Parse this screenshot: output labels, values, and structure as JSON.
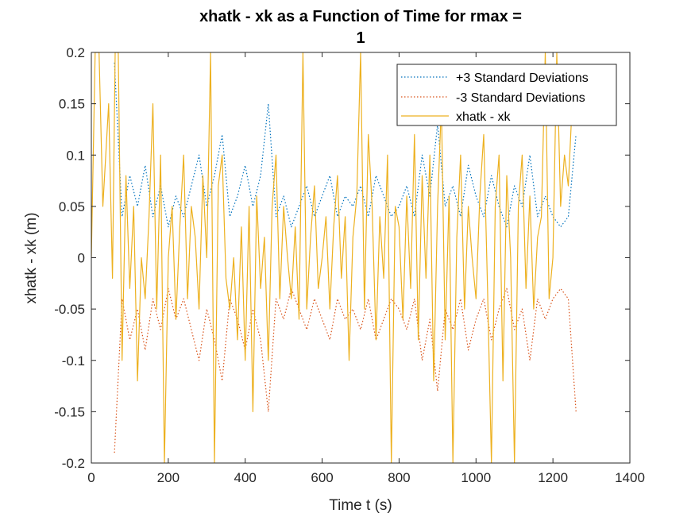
{
  "chart_data": {
    "type": "line",
    "title_line1": "xhatk - xk as a Function of Time for rmax =",
    "title_line2": "1",
    "xlabel": "Time t (s)",
    "ylabel": "xhatk - xk (m)",
    "xlim": [
      0,
      1400
    ],
    "ylim": [
      -0.2,
      0.2
    ],
    "x_ticks": [
      0,
      200,
      400,
      600,
      800,
      1000,
      1200,
      1400
    ],
    "x_tick_labels": [
      "0",
      "200",
      "400",
      "600",
      "800",
      "1000",
      "1200",
      "1400"
    ],
    "y_ticks": [
      -0.2,
      -0.15,
      -0.1,
      -0.05,
      0,
      0.05,
      0.1,
      0.15,
      0.2
    ],
    "y_tick_labels": [
      "-0.2",
      "-0.15",
      "-0.1",
      "-0.05",
      "0",
      "0.05",
      "0.1",
      "0.15",
      "0.2"
    ],
    "grid": false,
    "legend_position": "top-right",
    "colors": {
      "plus3": "#0072BD",
      "minus3": "#D95319",
      "error": "#EDB120"
    },
    "series": [
      {
        "name": "+3 Standard Deviations",
        "style": "dotted",
        "x": [
          60,
          80,
          100,
          120,
          140,
          160,
          180,
          200,
          220,
          240,
          260,
          280,
          300,
          320,
          340,
          360,
          380,
          400,
          420,
          440,
          460,
          480,
          500,
          520,
          540,
          560,
          580,
          600,
          620,
          640,
          660,
          680,
          700,
          720,
          740,
          760,
          780,
          800,
          820,
          840,
          860,
          880,
          900,
          920,
          940,
          960,
          980,
          1000,
          1020,
          1040,
          1060,
          1080,
          1100,
          1120,
          1140,
          1160,
          1180,
          1200,
          1220,
          1240,
          1260
        ],
        "values": [
          0.19,
          0.04,
          0.08,
          0.05,
          0.09,
          0.04,
          0.07,
          0.03,
          0.06,
          0.04,
          0.07,
          0.1,
          0.05,
          0.08,
          0.12,
          0.04,
          0.06,
          0.09,
          0.05,
          0.08,
          0.15,
          0.04,
          0.06,
          0.03,
          0.05,
          0.07,
          0.04,
          0.06,
          0.08,
          0.04,
          0.06,
          0.05,
          0.07,
          0.04,
          0.08,
          0.06,
          0.04,
          0.05,
          0.07,
          0.04,
          0.1,
          0.06,
          0.13,
          0.05,
          0.07,
          0.04,
          0.09,
          0.06,
          0.04,
          0.08,
          0.05,
          0.03,
          0.07,
          0.05,
          0.1,
          0.04,
          0.06,
          0.04,
          0.03,
          0.04,
          0.12
        ]
      },
      {
        "name": "-3 Standard Deviations",
        "style": "dotted",
        "x": [
          60,
          80,
          100,
          120,
          140,
          160,
          180,
          200,
          220,
          240,
          260,
          280,
          300,
          320,
          340,
          360,
          380,
          400,
          420,
          440,
          460,
          480,
          500,
          520,
          540,
          560,
          580,
          600,
          620,
          640,
          660,
          680,
          700,
          720,
          740,
          760,
          780,
          800,
          820,
          840,
          860,
          880,
          900,
          920,
          940,
          960,
          980,
          1000,
          1020,
          1040,
          1060,
          1080,
          1100,
          1120,
          1140,
          1160,
          1180,
          1200,
          1220,
          1240,
          1260
        ],
        "values": [
          -0.19,
          -0.04,
          -0.08,
          -0.05,
          -0.09,
          -0.04,
          -0.07,
          -0.03,
          -0.06,
          -0.04,
          -0.07,
          -0.1,
          -0.05,
          -0.08,
          -0.12,
          -0.04,
          -0.06,
          -0.09,
          -0.05,
          -0.08,
          -0.15,
          -0.04,
          -0.06,
          -0.03,
          -0.05,
          -0.07,
          -0.04,
          -0.06,
          -0.08,
          -0.04,
          -0.06,
          -0.05,
          -0.07,
          -0.04,
          -0.08,
          -0.06,
          -0.04,
          -0.05,
          -0.07,
          -0.04,
          -0.1,
          -0.06,
          -0.13,
          -0.05,
          -0.07,
          -0.04,
          -0.09,
          -0.06,
          -0.04,
          -0.08,
          -0.05,
          -0.03,
          -0.07,
          -0.05,
          -0.1,
          -0.04,
          -0.06,
          -0.04,
          -0.03,
          -0.04,
          -0.15
        ]
      },
      {
        "name": "xhatk - xk",
        "style": "solid",
        "x": [
          0,
          10,
          20,
          30,
          45,
          55,
          62,
          70,
          80,
          90,
          100,
          110,
          120,
          130,
          140,
          150,
          160,
          170,
          180,
          190,
          200,
          210,
          220,
          230,
          240,
          250,
          260,
          270,
          280,
          290,
          300,
          310,
          320,
          330,
          340,
          350,
          360,
          370,
          380,
          390,
          400,
          410,
          420,
          430,
          440,
          450,
          460,
          470,
          480,
          490,
          500,
          510,
          520,
          530,
          540,
          550,
          560,
          570,
          580,
          590,
          600,
          610,
          620,
          630,
          640,
          650,
          660,
          670,
          680,
          690,
          700,
          710,
          720,
          730,
          740,
          750,
          760,
          770,
          780,
          790,
          800,
          810,
          820,
          830,
          840,
          850,
          860,
          870,
          880,
          890,
          900,
          910,
          920,
          930,
          940,
          950,
          960,
          970,
          980,
          990,
          1000,
          1010,
          1020,
          1030,
          1040,
          1050,
          1060,
          1070,
          1080,
          1090,
          1100,
          1110,
          1120,
          1130,
          1140,
          1150,
          1160,
          1170,
          1180,
          1190,
          1200,
          1210,
          1220,
          1230,
          1240,
          1250
        ],
        "values": [
          0.0,
          0.2,
          0.2,
          0.05,
          0.15,
          -0.02,
          0.2,
          0.2,
          -0.1,
          0.08,
          -0.03,
          0.05,
          -0.12,
          0.0,
          -0.04,
          0.04,
          0.15,
          -0.05,
          0.1,
          -0.2,
          0.0,
          0.05,
          -0.06,
          0.03,
          0.1,
          -0.04,
          0.05,
          0.02,
          -0.05,
          0.08,
          0.0,
          0.2,
          -0.2,
          0.07,
          0.1,
          -0.02,
          -0.05,
          0.0,
          -0.08,
          0.03,
          -0.1,
          0.05,
          -0.15,
          0.06,
          -0.03,
          0.02,
          -0.1,
          0.05,
          0.1,
          -0.04,
          0.05,
          0.0,
          -0.04,
          0.03,
          -0.06,
          0.2,
          -0.05,
          0.02,
          0.07,
          -0.03,
          0.0,
          0.04,
          -0.05,
          0.03,
          0.08,
          -0.02,
          0.04,
          -0.1,
          0.02,
          0.06,
          0.2,
          -0.05,
          0.12,
          0.05,
          -0.08,
          0.04,
          -0.02,
          0.1,
          -0.2,
          0.05,
          0.03,
          -0.06,
          0.06,
          -0.03,
          0.12,
          -0.08,
          0.08,
          -0.02,
          0.1,
          -0.12,
          0.05,
          0.15,
          -0.08,
          0.06,
          -0.2,
          0.02,
          0.1,
          -0.05,
          0.05,
          0.0,
          -0.04,
          0.06,
          0.12,
          -0.03,
          -0.2,
          0.05,
          0.1,
          -0.12,
          0.08,
          0.0,
          -0.2,
          0.05,
          0.1,
          -0.03,
          0.06,
          -0.05,
          0.02,
          0.04,
          0.2,
          -0.04,
          0.0,
          0.2,
          0.05,
          0.1,
          0.07,
          0.15
        ]
      }
    ]
  }
}
